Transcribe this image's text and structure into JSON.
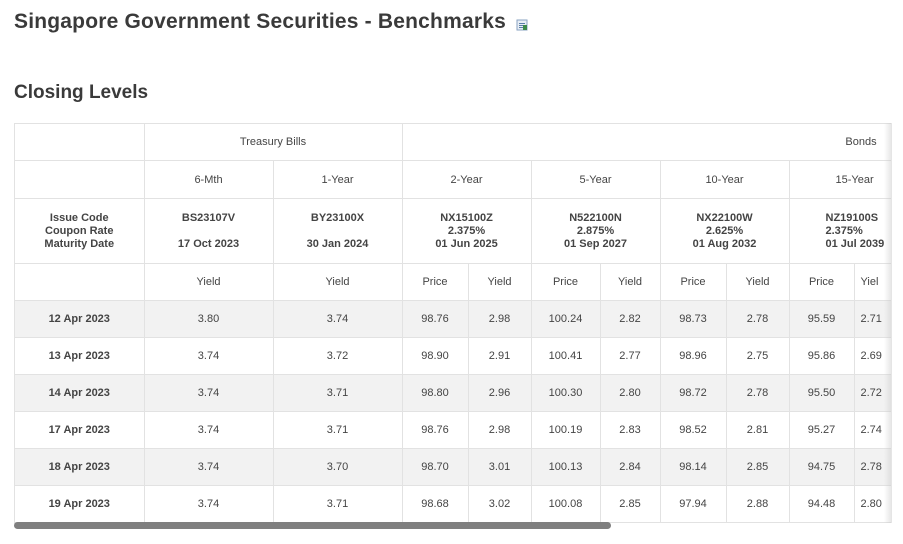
{
  "page_title": "Singapore Government Securities - Benchmarks",
  "section_title": "Closing Levels",
  "icons": {
    "title_icon": "excel-export-icon"
  },
  "table": {
    "group_headers": {
      "tbills": "Treasury Bills",
      "bonds": "Bonds"
    },
    "tenors": [
      "6-Mth",
      "1-Year",
      "2-Year",
      "5-Year",
      "10-Year",
      "15-Year"
    ],
    "issue_labels": [
      "Issue Code",
      "Coupon Rate",
      "Maturity Date"
    ],
    "issues": [
      {
        "code": "BS23107V",
        "coupon": "",
        "maturity": "17 Oct 2023"
      },
      {
        "code": "BY23100X",
        "coupon": "",
        "maturity": "30 Jan 2024"
      },
      {
        "code": "NX15100Z",
        "coupon": "2.375%",
        "maturity": "01 Jun 2025"
      },
      {
        "code": "N522100N",
        "coupon": "2.875%",
        "maturity": "01 Sep 2027"
      },
      {
        "code": "NX22100W",
        "coupon": "2.625%",
        "maturity": "01 Aug 2032"
      },
      {
        "code": "NZ19100S",
        "coupon": "2.375%",
        "maturity": "01 Jul 2039"
      }
    ],
    "subheaders": {
      "yield": "Yield",
      "price": "Price",
      "partial_yield": "Yiel"
    },
    "rows": [
      {
        "date": "12 Apr 2023",
        "v": [
          "3.80",
          "3.74",
          "98.76",
          "2.98",
          "100.24",
          "2.82",
          "98.73",
          "2.78",
          "95.59",
          "2.71"
        ]
      },
      {
        "date": "13 Apr 2023",
        "v": [
          "3.74",
          "3.72",
          "98.90",
          "2.91",
          "100.41",
          "2.77",
          "98.96",
          "2.75",
          "95.86",
          "2.69"
        ]
      },
      {
        "date": "14 Apr 2023",
        "v": [
          "3.74",
          "3.71",
          "98.80",
          "2.96",
          "100.30",
          "2.80",
          "98.72",
          "2.78",
          "95.50",
          "2.72"
        ]
      },
      {
        "date": "17 Apr 2023",
        "v": [
          "3.74",
          "3.71",
          "98.76",
          "2.98",
          "100.19",
          "2.83",
          "98.52",
          "2.81",
          "95.27",
          "2.74"
        ]
      },
      {
        "date": "18 Apr 2023",
        "v": [
          "3.74",
          "3.70",
          "98.70",
          "3.01",
          "100.13",
          "2.84",
          "98.14",
          "2.85",
          "94.75",
          "2.78"
        ]
      },
      {
        "date": "19 Apr 2023",
        "v": [
          "3.74",
          "3.71",
          "98.68",
          "3.02",
          "100.08",
          "2.85",
          "97.94",
          "2.88",
          "94.48",
          "2.80"
        ]
      }
    ]
  }
}
